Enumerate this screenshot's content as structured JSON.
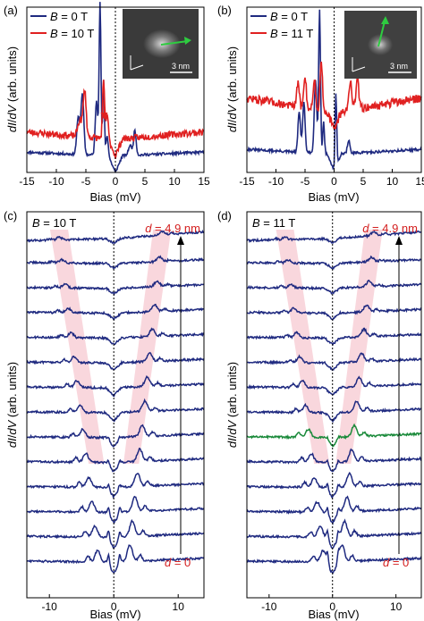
{
  "colors": {
    "blue": "#1f2a80",
    "red": "#e02020",
    "green": "#1a8a3a",
    "shade": "#f6c6cf",
    "inset_arrow": "#2ecc40"
  },
  "chart_data": [
    {
      "panel": "(a)",
      "type": "line",
      "xlabel": "Bias (mV)",
      "ylabel": "dI/dV (arb. units)",
      "xlim": [
        -15,
        15
      ],
      "xticks": [
        "-15",
        "-10",
        "-5",
        "0",
        "5",
        "10",
        "15"
      ],
      "xtick_values": [
        -15,
        -10,
        -5,
        0,
        5,
        10,
        15
      ],
      "ylim": [
        0,
        10
      ],
      "legend": [
        {
          "prefix": "B",
          "text": " = 0 T",
          "color": "#1f2a80"
        },
        {
          "prefix": "B",
          "text": " = 10 T",
          "color": "#e02020"
        }
      ],
      "series": [
        {
          "color": "#1f2a80",
          "peaks": [
            [
              -6.3,
              2.2,
              0.35
            ],
            [
              -5.6,
              3.6,
              0.35
            ],
            [
              -3.2,
              3.3,
              0.3
            ],
            [
              -2.6,
              9.2,
              0.22
            ],
            [
              -2.0,
              4.5,
              0.2
            ],
            [
              -1.4,
              1.2,
              0.25
            ],
            [
              2.5,
              0.6,
              0.4
            ],
            [
              3.3,
              1.5,
              0.3
            ]
          ],
          "base": 1.0,
          "slope": 0.015,
          "gap": 1.0,
          "noise": 0.08,
          "seed": 11
        },
        {
          "color": "#e02020",
          "peaks": [
            [
              -6.0,
              1.0,
              0.5
            ],
            [
              -5.2,
              2.8,
              0.35
            ],
            [
              -2.0,
              3.4,
              0.25
            ],
            [
              -1.4,
              1.5,
              0.25
            ]
          ],
          "base": 2.0,
          "slope": 0.03,
          "gap": 1.0,
          "noise": 0.2,
          "seed": 23
        }
      ],
      "arrow_x": -1.9,
      "inset_scale": "3 nm"
    },
    {
      "panel": "(b)",
      "type": "line",
      "xlabel": "Bias (mV)",
      "ylabel": "dI/dV (arb. units)",
      "xlim": [
        -15,
        15
      ],
      "xticks": [
        "-15",
        "-10",
        "-5",
        "0",
        "5",
        "10",
        "15"
      ],
      "xtick_values": [
        -15,
        -10,
        -5,
        0,
        5,
        10,
        15
      ],
      "ylim": [
        0,
        10
      ],
      "legend": [
        {
          "prefix": "B",
          "text": " = 0 T",
          "color": "#1f2a80"
        },
        {
          "prefix": "B",
          "text": " = 11 T",
          "color": "#e02020"
        }
      ],
      "series": [
        {
          "color": "#1f2a80",
          "peaks": [
            [
              -6.0,
              2.5,
              0.3
            ],
            [
              -5.2,
              3.0,
              0.3
            ],
            [
              -3.2,
              4.5,
              0.3
            ],
            [
              -2.5,
              8.7,
              0.22
            ],
            [
              -1.8,
              2.0,
              0.2
            ],
            [
              0.3,
              4.4,
              0.2
            ],
            [
              2.5,
              0.8,
              0.3
            ]
          ],
          "base": 1.1,
          "slope": 0.02,
          "gap": 1.0,
          "noise": 0.08,
          "seed": 31
        },
        {
          "color": "#e02020",
          "peaks": [
            [
              -6.2,
              1.5,
              0.3
            ],
            [
              -5.0,
              2.0,
              0.3
            ],
            [
              -3.4,
              1.8,
              0.3
            ],
            [
              -2.2,
              3.0,
              0.3
            ],
            [
              2.8,
              1.8,
              0.35
            ],
            [
              4.0,
              1.8,
              0.35
            ]
          ],
          "base": 3.6,
          "slope": 0.06,
          "gap": 1.0,
          "noise": 0.25,
          "seed": 47
        }
      ],
      "inset_scale": "3 nm"
    },
    {
      "panel": "(c)",
      "type": "line",
      "field_prefix": "B",
      "field_text": " = 10 T",
      "d_top_prefix": "d",
      "d_top_text": " = 4.9 nm",
      "d_bottom_prefix": "d",
      "d_bottom_text": " = 0",
      "xlabel": "Bias (mV)",
      "ylabel": "dI/dV (arb. units)",
      "xlim": [
        -13.5,
        14
      ],
      "xticks": [
        "-10",
        "0",
        "10"
      ],
      "xtick_values": [
        -10,
        0,
        10
      ],
      "n_traces": 14,
      "highlight_trace": -1,
      "left_peak": [
        -2.5,
        -8.5
      ],
      "right_peak": [
        2.5,
        7.5
      ]
    },
    {
      "panel": "(d)",
      "type": "line",
      "field_prefix": "B",
      "field_text": " = 11 T",
      "d_top_prefix": "d",
      "d_top_text": " = 4.9 nm",
      "d_bottom_prefix": "d",
      "d_bottom_text": " = 0",
      "xlabel": "Bias (mV)",
      "ylabel": "dI/dV (arb. units)",
      "xlim": [
        -13.5,
        14
      ],
      "xticks": [
        "-10",
        "0",
        "10"
      ],
      "xtick_values": [
        -10,
        0,
        10
      ],
      "n_traces": 14,
      "highlight_trace": 8,
      "left_peak": [
        -1.5,
        -7.5
      ],
      "right_peak": [
        1.5,
        6.5
      ]
    }
  ]
}
